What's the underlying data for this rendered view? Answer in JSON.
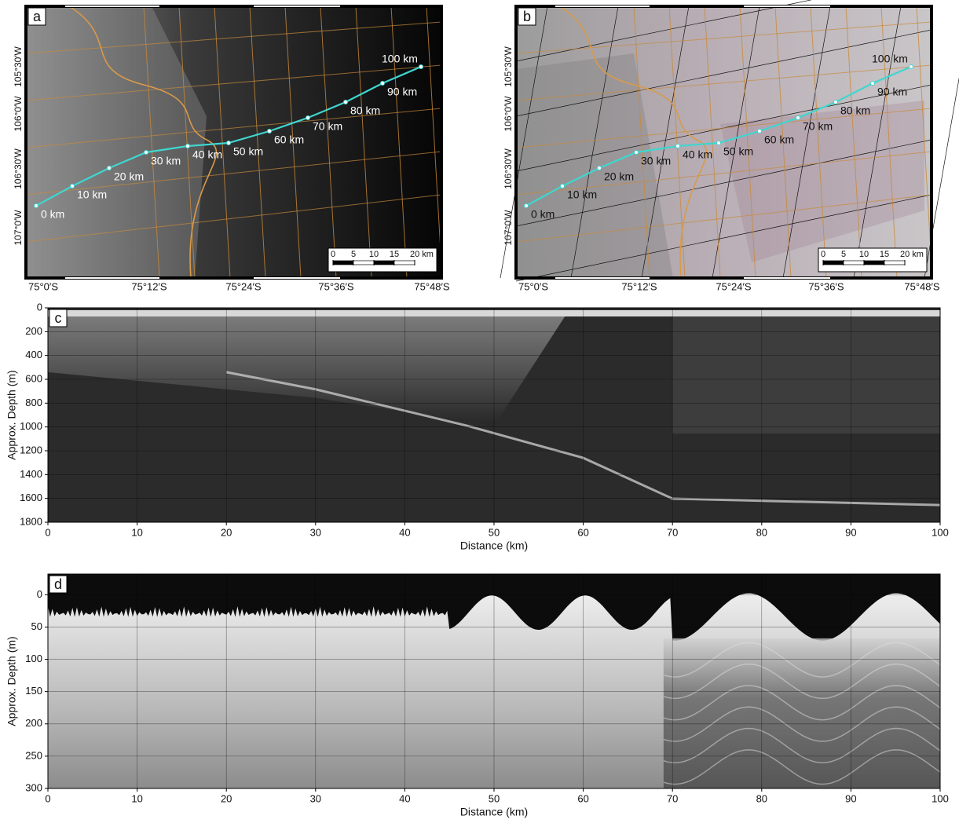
{
  "chart_data": [
    {
      "type": "map",
      "panel_label": "a",
      "lon_labels": [
        "105°30′W",
        "106°0′W",
        "106°30′W",
        "107°0′W"
      ],
      "lat_labels": [
        "75°0′S",
        "75°12′S",
        "75°24′S",
        "75°36′S",
        "75°48′S"
      ],
      "track_labels": [
        "0 km",
        "10 km",
        "20 km",
        "30 km",
        "40 km",
        "50 km",
        "60 km",
        "70 km",
        "80 km",
        "90 km",
        "100 km"
      ],
      "track_color": "#3fd6d0",
      "scale_bar": {
        "ticks": [
          0,
          5,
          10,
          15,
          {
            "value": 20,
            "label": "20 km"
          }
        ]
      }
    },
    {
      "type": "map",
      "panel_label": "b",
      "lon_labels": [
        "105°30′W",
        "106°0′W",
        "106°30′W",
        "107°0′W"
      ],
      "lat_labels": [
        "75°0′S",
        "75°12′S",
        "75°24′S",
        "75°36′S",
        "75°48′S"
      ],
      "track_labels": [
        "0 km",
        "10 km",
        "20 km",
        "30 km",
        "40 km",
        "50 km",
        "60 km",
        "70 km",
        "80 km",
        "90 km",
        "100 km"
      ],
      "track_color": "#3fd6d0",
      "scale_bar": {
        "ticks": [
          0,
          5,
          10,
          15,
          {
            "value": 20,
            "label": "20 km"
          }
        ]
      }
    },
    {
      "type": "radargram",
      "panel_label": "c",
      "x_label": "Distance (km)",
      "y_label": "Approx. Depth (m)",
      "xlim": [
        0,
        100
      ],
      "xticks": [
        0,
        10,
        20,
        30,
        40,
        50,
        60,
        70,
        80,
        90,
        100
      ],
      "ylim": [
        1800,
        0
      ],
      "yticks": [
        0,
        200,
        400,
        600,
        800,
        1000,
        1200,
        1400,
        1600,
        1800
      ],
      "grid": true
    },
    {
      "type": "radargram",
      "panel_label": "d",
      "x_label": "Distance (km)",
      "y_label": "Approx. Depth (m)",
      "xlim": [
        0,
        100
      ],
      "xticks": [
        0,
        10,
        20,
        30,
        40,
        50,
        60,
        70,
        80,
        90,
        100
      ],
      "ylim": [
        300,
        -32
      ],
      "yticks": [
        0,
        50,
        100,
        150,
        200,
        250,
        300
      ],
      "grid": true
    }
  ]
}
